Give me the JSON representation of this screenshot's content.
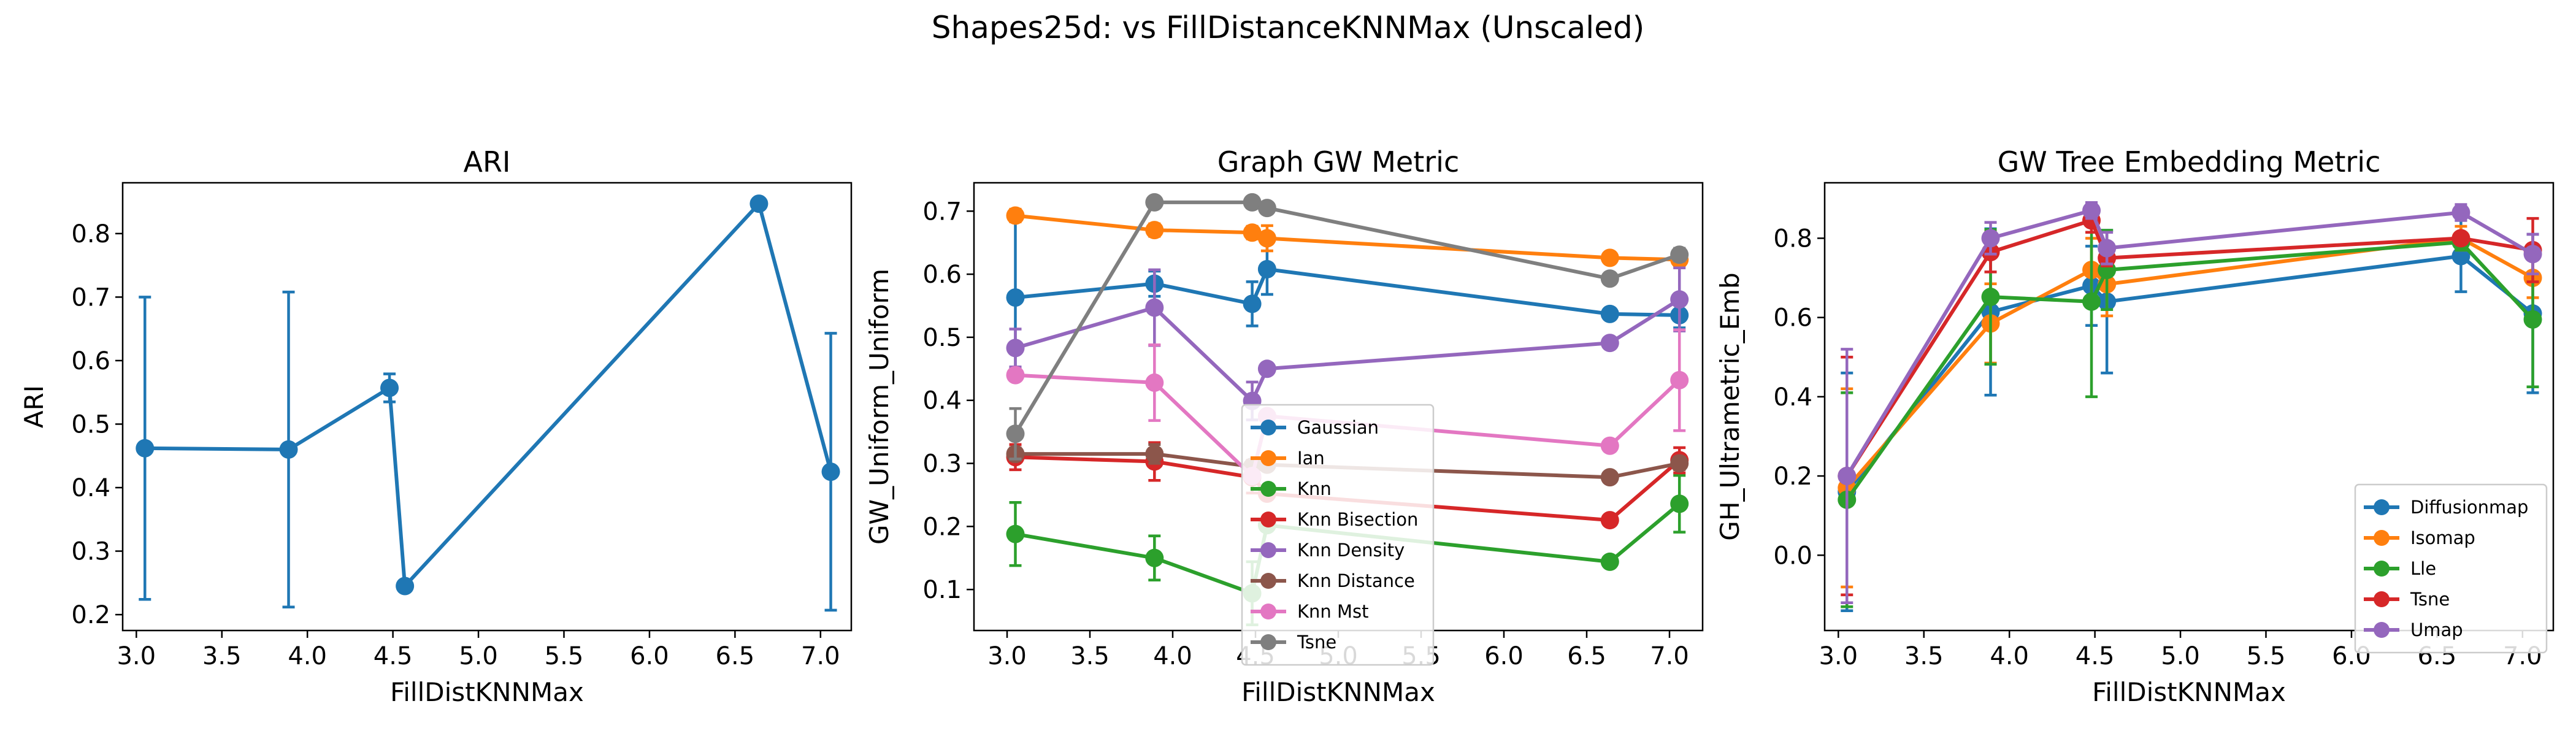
{
  "suptitle": "Shapes25d: vs FillDistanceKNNMax (Unscaled)",
  "chart_data": [
    {
      "type": "line",
      "title": "ARI",
      "xlabel": "FillDistKNNMax",
      "ylabel": "ARI",
      "xlim": [
        2.92,
        7.18
      ],
      "ylim": [
        0.175,
        0.88
      ],
      "xticks": [
        3.0,
        3.5,
        4.0,
        4.5,
        5.0,
        5.5,
        6.0,
        6.5,
        7.0
      ],
      "yticks": [
        0.2,
        0.3,
        0.4,
        0.5,
        0.6,
        0.7,
        0.8
      ],
      "legend": "none",
      "series": [
        {
          "color": "#1f77b4",
          "x": [
            3.05,
            3.89,
            4.48,
            4.57,
            6.64,
            7.06
          ],
          "y": [
            0.462,
            0.46,
            0.557,
            0.245,
            0.847,
            0.425
          ],
          "err": [
            0.238,
            0.248,
            0.022,
            0.0,
            0.0,
            0.218
          ]
        }
      ]
    },
    {
      "type": "line",
      "title": "Graph GW Metric",
      "xlabel": "FillDistKNNMax",
      "ylabel": "GW_Uniform_Uniform",
      "xlim": [
        2.8,
        7.2
      ],
      "ylim": [
        0.035,
        0.745
      ],
      "xticks": [
        3.0,
        3.5,
        4.0,
        4.5,
        5.0,
        5.5,
        6.0,
        6.5,
        7.0
      ],
      "yticks": [
        0.1,
        0.2,
        0.3,
        0.4,
        0.5,
        0.6,
        0.7
      ],
      "legend": "lower-center",
      "series": [
        {
          "name": "Gaussian",
          "color": "#1f77b4",
          "x": [
            3.05,
            3.89,
            4.48,
            4.57,
            6.64,
            7.06
          ],
          "y": [
            0.563,
            0.585,
            0.553,
            0.608,
            0.537,
            0.535
          ],
          "err": [
            0.13,
            0.02,
            0.035,
            0.04,
            0.0,
            0.02
          ]
        },
        {
          "name": "Ian",
          "color": "#ff7f0e",
          "x": [
            3.05,
            3.89,
            4.48,
            4.57,
            6.64,
            7.06
          ],
          "y": [
            0.693,
            0.67,
            0.666,
            0.657,
            0.626,
            0.623
          ],
          "err": [
            0.01,
            0.01,
            0.01,
            0.02,
            0.0,
            0.01
          ]
        },
        {
          "name": "Knn",
          "color": "#2ca02c",
          "x": [
            3.05,
            3.89,
            4.48,
            4.57,
            6.64,
            7.06
          ],
          "y": [
            0.188,
            0.15,
            0.094,
            0.202,
            0.144,
            0.236
          ],
          "err": [
            0.05,
            0.035,
            0.05,
            0.0,
            0.0,
            0.045
          ]
        },
        {
          "name": "Knn Bisection",
          "color": "#d62728",
          "x": [
            3.05,
            3.89,
            4.48,
            4.57,
            6.64,
            7.06
          ],
          "y": [
            0.31,
            0.303,
            0.278,
            0.252,
            0.21,
            0.305
          ],
          "err": [
            0.02,
            0.03,
            0.025,
            0.0,
            0.0,
            0.02
          ]
        },
        {
          "name": "Knn Density",
          "color": "#9467bd",
          "x": [
            3.05,
            3.89,
            4.48,
            4.57,
            6.64,
            7.06
          ],
          "y": [
            0.483,
            0.547,
            0.399,
            0.45,
            0.491,
            0.56
          ],
          "err": [
            0.03,
            0.06,
            0.03,
            0.0,
            0.0,
            0.05
          ]
        },
        {
          "name": "Knn Distance",
          "color": "#8c564b",
          "x": [
            3.05,
            3.89,
            4.48,
            4.57,
            6.64,
            7.06
          ],
          "y": [
            0.315,
            0.315,
            0.295,
            0.298,
            0.278,
            0.3
          ],
          "err": [
            0.01,
            0.015,
            0.01,
            0.0,
            0.0,
            0.01
          ]
        },
        {
          "name": "Knn Mst",
          "color": "#e377c2",
          "x": [
            3.05,
            3.89,
            4.48,
            4.57,
            6.64,
            7.06
          ],
          "y": [
            0.44,
            0.428,
            0.28,
            0.375,
            0.328,
            0.432
          ],
          "err": [
            0.0,
            0.06,
            0.0,
            0.0,
            0.0,
            0.08
          ]
        },
        {
          "name": "Tsne",
          "color": "#7f7f7f",
          "x": [
            3.05,
            3.89,
            4.48,
            4.57,
            6.64,
            7.06
          ],
          "y": [
            0.347,
            0.714,
            0.714,
            0.705,
            0.593,
            0.631
          ],
          "err": [
            0.04,
            0.0,
            0.0,
            0.0,
            0.0,
            0.01
          ]
        }
      ]
    },
    {
      "type": "line",
      "title": "GW Tree Embedding Metric",
      "xlabel": "FillDistKNNMax",
      "ylabel": "GH_Ultrametric_Emb",
      "xlim": [
        2.92,
        7.18
      ],
      "ylim": [
        -0.19,
        0.94
      ],
      "xticks": [
        3.0,
        3.5,
        4.0,
        4.5,
        5.0,
        5.5,
        6.0,
        6.5,
        7.0
      ],
      "yticks": [
        0.0,
        0.2,
        0.4,
        0.6,
        0.8
      ],
      "legend": "lower-right",
      "series": [
        {
          "name": "Diffusionmap",
          "color": "#1f77b4",
          "x": [
            3.05,
            3.89,
            4.48,
            4.57,
            6.64,
            7.06
          ],
          "y": [
            0.16,
            0.614,
            0.68,
            0.64,
            0.755,
            0.61
          ],
          "err": [
            0.3,
            0.21,
            0.1,
            0.18,
            0.09,
            0.2
          ]
        },
        {
          "name": "Isomap",
          "color": "#ff7f0e",
          "x": [
            3.05,
            3.89,
            4.48,
            4.57,
            6.64,
            7.06
          ],
          "y": [
            0.17,
            0.585,
            0.72,
            0.684,
            0.8,
            0.7
          ],
          "err": [
            0.25,
            0.1,
            0.08,
            0.08,
            0.03,
            0.05
          ]
        },
        {
          "name": "Lle",
          "color": "#2ca02c",
          "x": [
            3.05,
            3.89,
            4.48,
            4.57,
            6.64,
            7.06
          ],
          "y": [
            0.14,
            0.652,
            0.64,
            0.72,
            0.79,
            0.595
          ],
          "err": [
            0.27,
            0.17,
            0.24,
            0.1,
            0.02,
            0.17
          ]
        },
        {
          "name": "Tsne",
          "color": "#d62728",
          "x": [
            3.05,
            3.89,
            4.48,
            4.57,
            6.64,
            7.06
          ],
          "y": [
            0.2,
            0.765,
            0.845,
            0.75,
            0.8,
            0.77
          ],
          "err": [
            0.3,
            0.05,
            0.03,
            0.02,
            0.01,
            0.08
          ]
        },
        {
          "name": "Umap",
          "color": "#9467bd",
          "x": [
            3.05,
            3.89,
            4.48,
            4.57,
            6.64,
            7.06
          ],
          "y": [
            0.2,
            0.8,
            0.87,
            0.775,
            0.865,
            0.76
          ],
          "err": [
            0.32,
            0.04,
            0.02,
            0.04,
            0.02,
            0.05
          ]
        }
      ]
    }
  ]
}
